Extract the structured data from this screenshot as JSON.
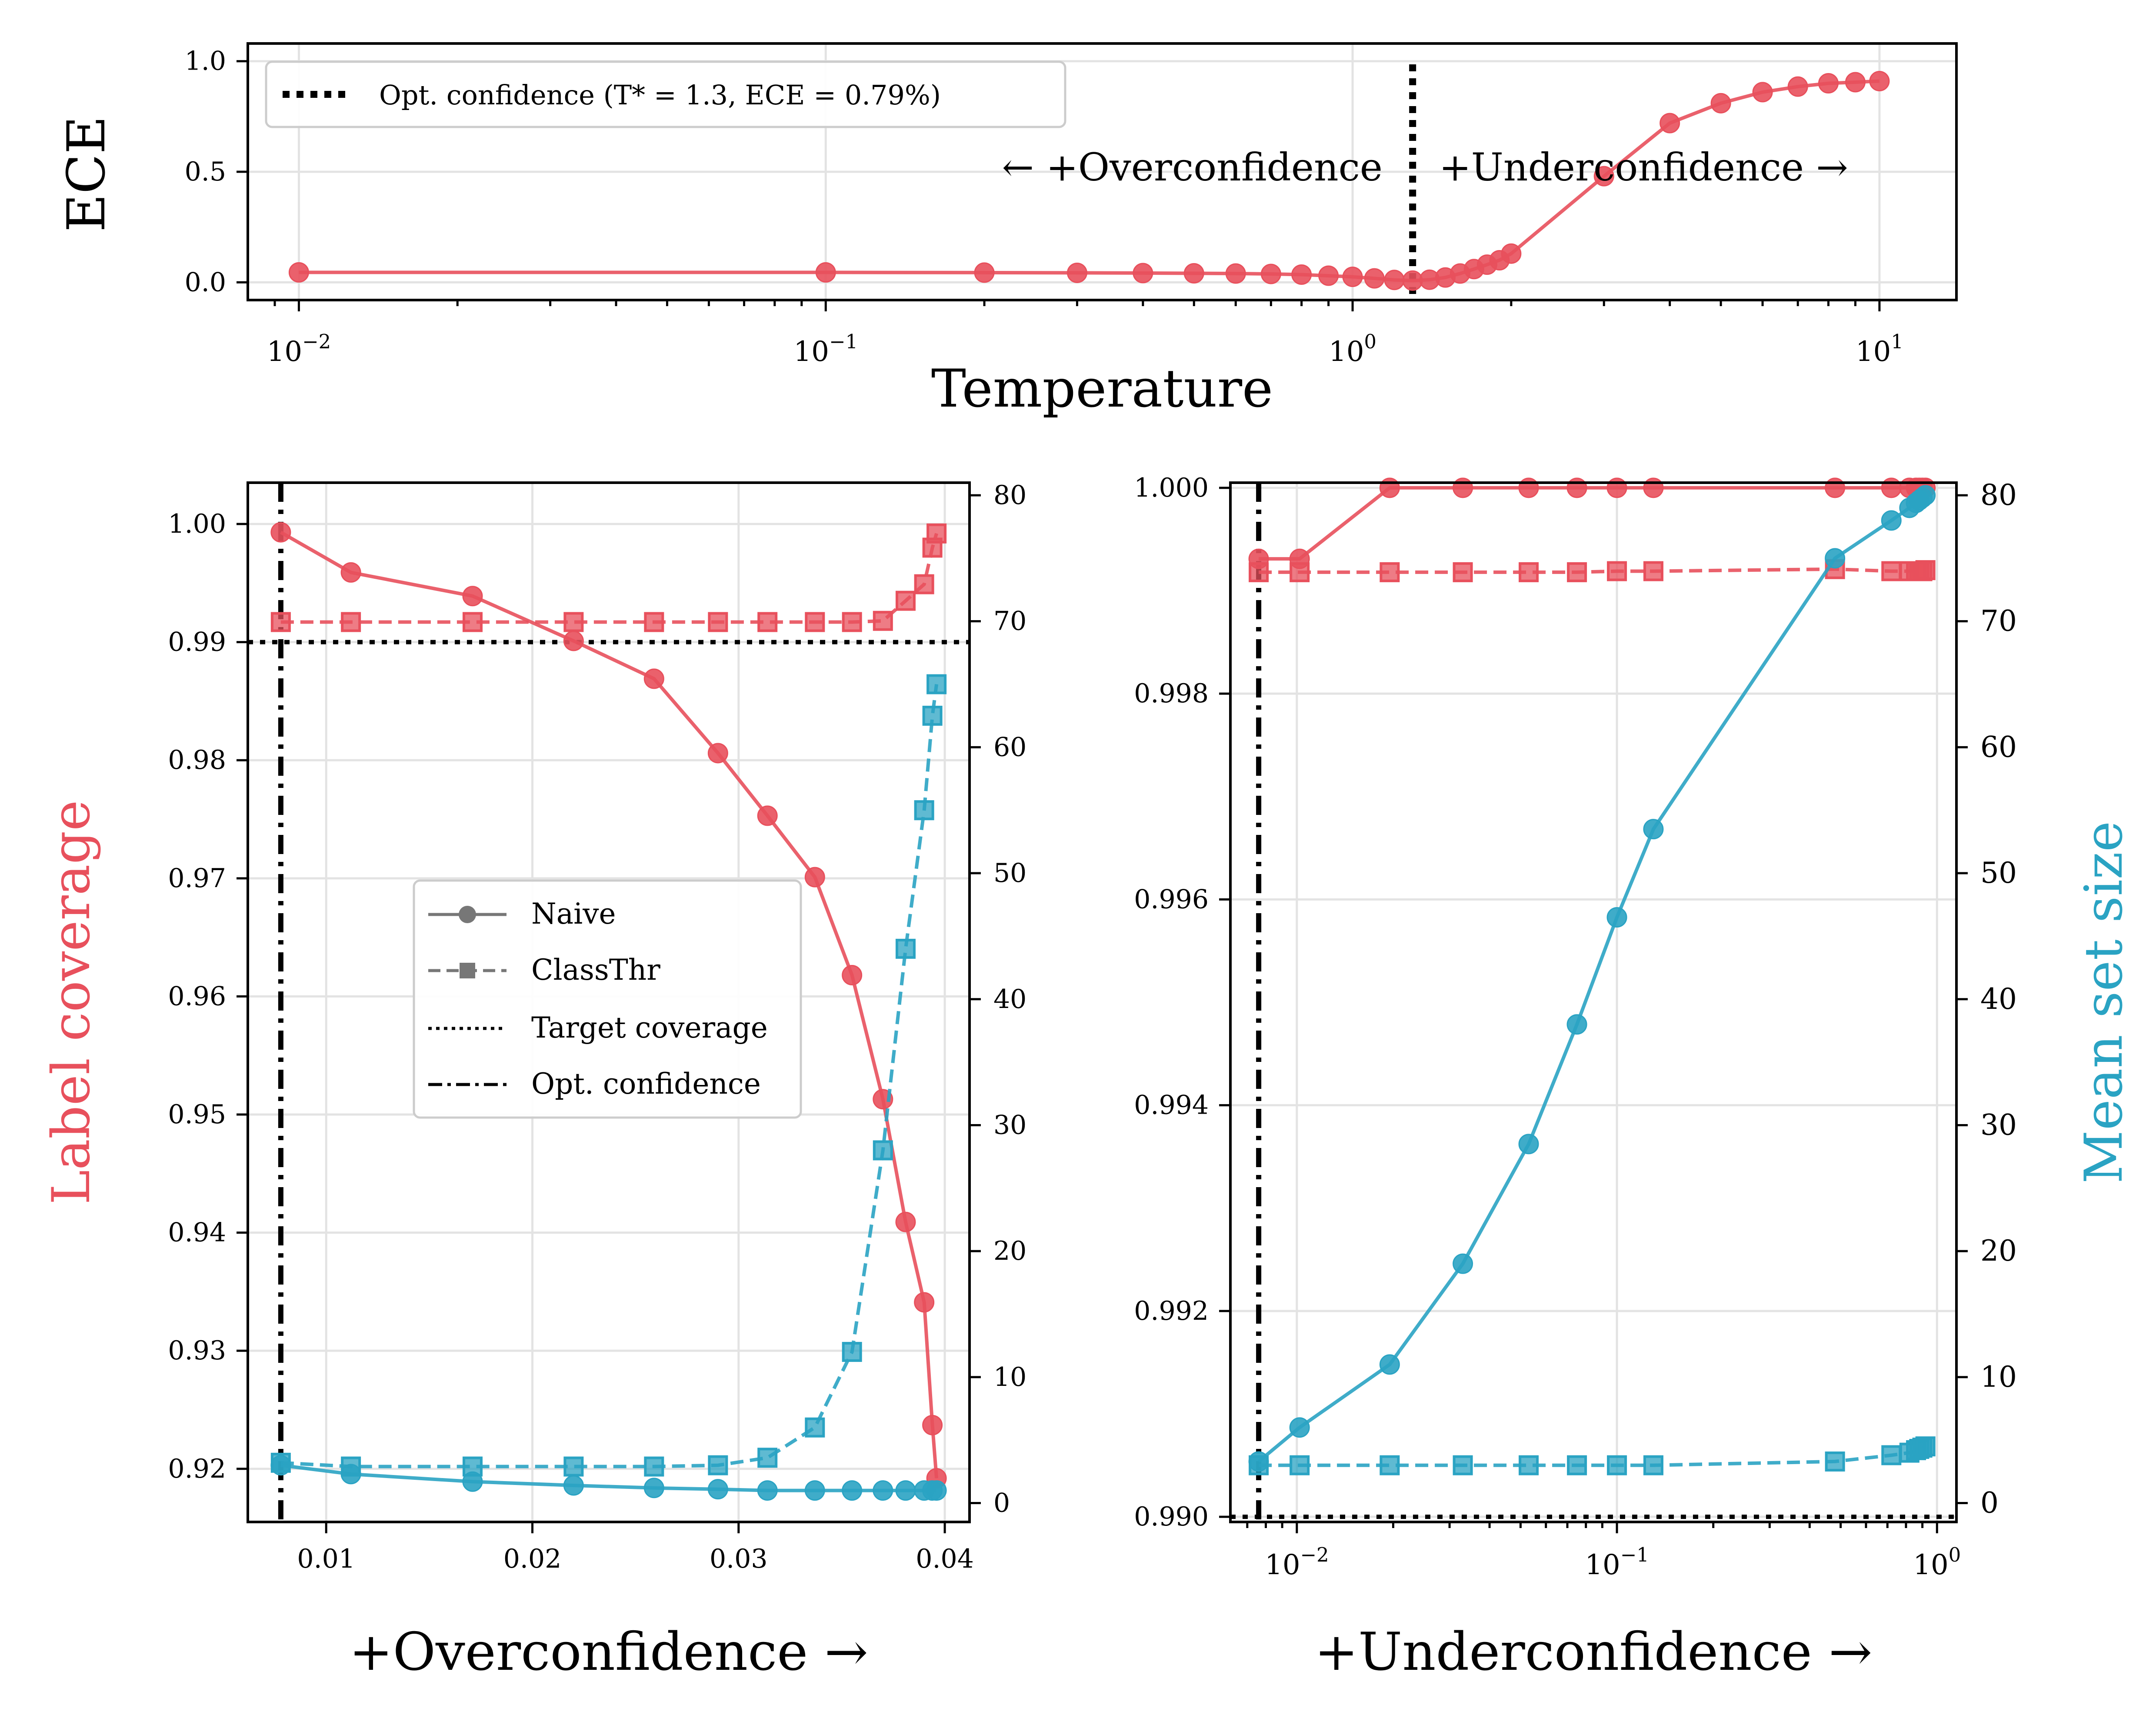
{
  "colors": {
    "red": "#e8505c",
    "blue": "#2aa3c3",
    "grid": "#e3e3e3",
    "legend_border": "#cccccc"
  },
  "chart_data": [
    {
      "type": "line",
      "title": "",
      "xlabel": "Temperature",
      "ylabel": "ECE",
      "xscale": "log",
      "xlim": [
        0.008,
        14
      ],
      "ylim": [
        -0.08,
        1.08
      ],
      "grid": true,
      "x_tick_labels": [
        "10",
        "10",
        "10",
        "10"
      ],
      "x_tick_exps": [
        "−2",
        "−1",
        "0",
        "1"
      ],
      "y_tick_labels": [
        "0.0",
        "0.5",
        "1.0"
      ],
      "series": [
        {
          "name": "ECE",
          "x": [
            0.01,
            0.1,
            0.2,
            0.3,
            0.4,
            0.5,
            0.6,
            0.7,
            0.8,
            0.9,
            1.0,
            1.1,
            1.2,
            1.3,
            1.4,
            1.5,
            1.6,
            1.7,
            1.8,
            1.9,
            2,
            3,
            4,
            5,
            6,
            7,
            8,
            9,
            10
          ],
          "values": [
            0.045,
            0.045,
            0.044,
            0.043,
            0.042,
            0.041,
            0.04,
            0.038,
            0.035,
            0.03,
            0.025,
            0.018,
            0.011,
            0.008,
            0.012,
            0.022,
            0.04,
            0.06,
            0.08,
            0.1,
            0.13,
            0.48,
            0.72,
            0.81,
            0.86,
            0.885,
            0.9,
            0.905,
            0.91
          ]
        }
      ],
      "optimal_temperature": 1.3,
      "legend": "Opt. confidence (T* = 1.3, ECE = 0.79%)",
      "annotations": {
        "left": "← +Overconfidence",
        "right": "+Underconfidence →"
      }
    },
    {
      "type": "line",
      "xlabel": "+Overconfidence →",
      "ylabel": "Label coverage",
      "y2label": "",
      "xlim": [
        0.0062,
        0.0412
      ],
      "ylim": [
        0.9155,
        1.0035
      ],
      "y2lim": [
        -1.5,
        81
      ],
      "grid": true,
      "x_tick_labels": [
        "0.01",
        "0.02",
        "0.03",
        "0.04"
      ],
      "y_tick_labels": [
        "0.92",
        "0.93",
        "0.94",
        "0.95",
        "0.96",
        "0.97",
        "0.98",
        "0.99",
        "1.00"
      ],
      "y2_tick_labels": [
        "0",
        "10",
        "20",
        "30",
        "40",
        "50",
        "60",
        "70",
        "80"
      ],
      "target_coverage": 0.99,
      "optimal_x": 0.0078,
      "x": [
        0.0078,
        0.0112,
        0.0171,
        0.022,
        0.0259,
        0.029,
        0.0314,
        0.0337,
        0.0355,
        0.037,
        0.0381,
        0.039,
        0.0394,
        0.0396
      ],
      "series": [
        {
          "name": "Naive coverage",
          "axis": "left",
          "color": "red",
          "style": "solid",
          "marker": "circle",
          "values": [
            0.9993,
            0.9959,
            0.9939,
            0.9901,
            0.9869,
            0.9806,
            0.9753,
            0.9701,
            0.9618,
            0.9513,
            0.9409,
            0.9341,
            0.9237,
            0.9192
          ]
        },
        {
          "name": "ClassThr coverage",
          "axis": "left",
          "color": "red",
          "style": "dashed",
          "marker": "square",
          "values": [
            0.9917,
            0.9917,
            0.9917,
            0.9917,
            0.9917,
            0.9917,
            0.9917,
            0.9917,
            0.9917,
            0.9918,
            0.9935,
            0.9949,
            0.998,
            0.9992
          ]
        },
        {
          "name": "Naive set size",
          "axis": "right",
          "color": "blue",
          "style": "solid",
          "marker": "circle",
          "values": [
            3.0,
            2.3,
            1.7,
            1.4,
            1.2,
            1.1,
            1.0,
            1.0,
            1.0,
            1.0,
            1.0,
            1.0,
            1.0,
            1.0
          ]
        },
        {
          "name": "ClassThr set size",
          "axis": "right",
          "color": "blue",
          "style": "dashed",
          "marker": "square",
          "values": [
            3.2,
            2.9,
            2.9,
            2.9,
            2.9,
            3.0,
            3.6,
            6.0,
            12.0,
            28.0,
            44.0,
            55.0,
            62.5,
            65.0
          ]
        }
      ],
      "legend": [
        "Naive",
        "ClassThr",
        "Target coverage",
        "Opt. confidence"
      ]
    },
    {
      "type": "line",
      "xlabel": "+Underconfidence →",
      "ylabel": "",
      "y2label": "Mean set size",
      "xscale": "log",
      "xlim": [
        0.0062,
        1.15
      ],
      "ylim": [
        0.98995,
        1.00005
      ],
      "y2lim": [
        -1.5,
        81
      ],
      "grid": true,
      "x_tick_labels": [
        "10",
        "10",
        "10"
      ],
      "x_tick_exps": [
        "−2",
        "−1",
        "0"
      ],
      "y_tick_labels": [
        "0.990",
        "0.992",
        "0.994",
        "0.996",
        "0.998",
        "1.000"
      ],
      "y2_tick_labels": [
        "0",
        "10",
        "20",
        "30",
        "40",
        "50",
        "60",
        "70",
        "80"
      ],
      "target_coverage": 0.99,
      "optimal_x": 0.0076,
      "x": [
        0.0076,
        0.0102,
        0.0195,
        0.033,
        0.053,
        0.075,
        0.1,
        0.13,
        0.48,
        0.72,
        0.82,
        0.86,
        0.88,
        0.9,
        0.92
      ],
      "series": [
        {
          "name": "Naive coverage",
          "axis": "left",
          "color": "red",
          "style": "solid",
          "marker": "circle",
          "values": [
            0.99931,
            0.99931,
            1.0,
            1.0,
            1.0,
            1.0,
            1.0,
            1.0,
            1.0,
            1.0,
            1.0,
            1.0,
            1.0,
            1.0,
            1.0
          ]
        },
        {
          "name": "ClassThr coverage",
          "axis": "left",
          "color": "red",
          "style": "dashed",
          "marker": "square",
          "values": [
            0.99918,
            0.99918,
            0.99918,
            0.99918,
            0.99918,
            0.99918,
            0.99919,
            0.99919,
            0.99921,
            0.99919,
            0.99919,
            0.99919,
            0.99919,
            0.99919,
            0.9992
          ]
        },
        {
          "name": "Naive set size",
          "axis": "right",
          "color": "blue",
          "style": "solid",
          "marker": "circle",
          "values": [
            3.3,
            6.0,
            11.0,
            19.0,
            28.5,
            38.0,
            46.5,
            53.5,
            75.0,
            78.0,
            79.0,
            79.4,
            79.6,
            79.8,
            80.0
          ]
        },
        {
          "name": "ClassThr set size",
          "axis": "right",
          "color": "blue",
          "style": "dashed",
          "marker": "square",
          "values": [
            3.0,
            3.0,
            3.0,
            3.0,
            3.0,
            3.0,
            3.0,
            3.0,
            3.3,
            3.8,
            4.0,
            4.2,
            4.3,
            4.4,
            4.5
          ]
        }
      ]
    }
  ]
}
